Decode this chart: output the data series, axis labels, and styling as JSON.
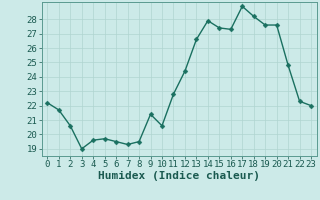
{
  "x": [
    0,
    1,
    2,
    3,
    4,
    5,
    6,
    7,
    8,
    9,
    10,
    11,
    12,
    13,
    14,
    15,
    16,
    17,
    18,
    19,
    20,
    21,
    22,
    23
  ],
  "y": [
    22.2,
    21.7,
    20.6,
    19.0,
    19.6,
    19.7,
    19.5,
    19.3,
    19.5,
    21.4,
    20.6,
    22.8,
    24.4,
    26.6,
    27.9,
    27.4,
    27.3,
    28.9,
    28.2,
    27.6,
    27.6,
    24.8,
    22.3,
    22.0
  ],
  "line_color": "#1a7060",
  "marker_color": "#1a7060",
  "bg_color": "#cceae8",
  "grid_color": "#b0d5d0",
  "xlabel": "Humidex (Indice chaleur)",
  "ylim": [
    18.5,
    29.2
  ],
  "xlim": [
    -0.5,
    23.5
  ],
  "yticks": [
    19,
    20,
    21,
    22,
    23,
    24,
    25,
    26,
    27,
    28
  ],
  "xticks": [
    0,
    1,
    2,
    3,
    4,
    5,
    6,
    7,
    8,
    9,
    10,
    11,
    12,
    13,
    14,
    15,
    16,
    17,
    18,
    19,
    20,
    21,
    22,
    23
  ],
  "tick_fontsize": 6.5,
  "xlabel_fontsize": 8,
  "linewidth": 1.0,
  "markersize": 2.5
}
